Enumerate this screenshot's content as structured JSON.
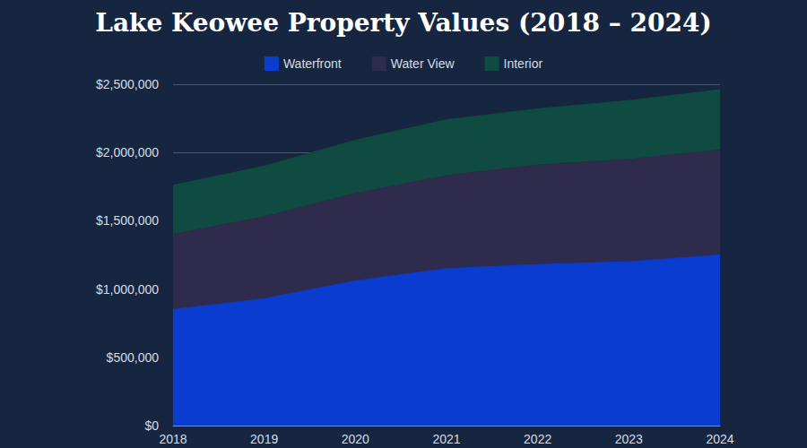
{
  "chart_data": {
    "type": "area",
    "title": "Lake Keowee Property Values (2018 – 2024)",
    "categories": [
      "2018",
      "2019",
      "2020",
      "2021",
      "2022",
      "2023",
      "2024"
    ],
    "series": [
      {
        "name": "Waterfront",
        "color": "#0b3cd0",
        "values": [
          850000,
          930000,
          1060000,
          1150000,
          1180000,
          1200000,
          1250000
        ]
      },
      {
        "name": "Water View",
        "color": "#2e2b4c",
        "values": [
          550000,
          600000,
          640000,
          680000,
          730000,
          750000,
          770000
        ]
      },
      {
        "name": "Interior",
        "color": "#0f4b40",
        "values": [
          360000,
          370000,
          390000,
          410000,
          410000,
          430000,
          440000
        ]
      }
    ],
    "ylim": [
      0,
      2500000
    ],
    "yticks": [
      {
        "value": 0,
        "label": "$0"
      },
      {
        "value": 500000,
        "label": "$500,000"
      },
      {
        "value": 1000000,
        "label": "$1,000,000"
      },
      {
        "value": 1500000,
        "label": "$1,500,000"
      },
      {
        "value": 2000000,
        "label": "$2,000,000"
      },
      {
        "value": 2500000,
        "label": "$2,500,000"
      }
    ],
    "stacked": true,
    "grid": true,
    "legend": "top"
  }
}
